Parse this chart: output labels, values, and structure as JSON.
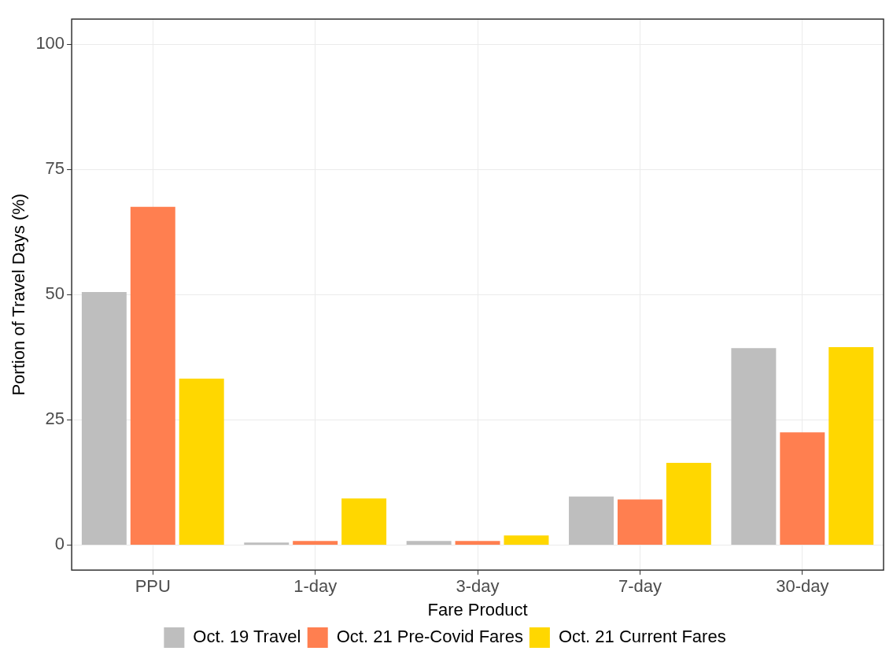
{
  "chart_data": {
    "type": "bar",
    "xlabel": "Fare Product",
    "ylabel": "Portion of Travel Days (%)",
    "categories": [
      "PPU",
      "1-day",
      "3-day",
      "7-day",
      "30-day"
    ],
    "series": [
      {
        "name": "Oct. 19 Travel",
        "color": "#bebebe",
        "values": [
          50.5,
          0.5,
          0.8,
          9.7,
          39.3
        ]
      },
      {
        "name": "Oct. 21 Pre-Covid Fares",
        "color": "#ff7f50",
        "values": [
          67.5,
          0.8,
          0.8,
          9.1,
          22.5
        ]
      },
      {
        "name": "Oct. 21 Current Fares",
        "color": "#ffd700",
        "values": [
          33.2,
          9.3,
          1.9,
          16.4,
          39.5
        ]
      }
    ],
    "ylim": [
      -5,
      105
    ],
    "yticks": [
      0,
      25,
      50,
      75,
      100
    ],
    "grid": true,
    "legend": "bottom"
  }
}
